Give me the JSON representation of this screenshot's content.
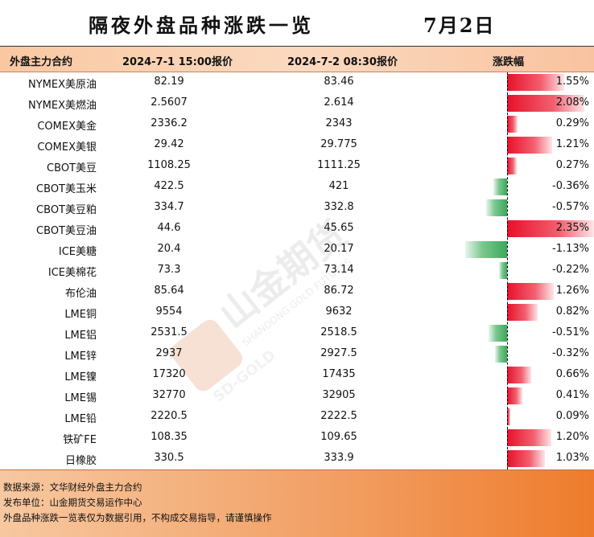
{
  "title": "隔夜外盘品种涨跌一览",
  "date": "7月2日",
  "header": {
    "name": "外盘主力合约",
    "prev": "2024-7-1 15:00报价",
    "curr": "2024-7-2 08:30报价",
    "chg": "涨跌幅"
  },
  "rows": [
    {
      "name": "NYMEX美原油",
      "prev": "82.19",
      "curr": "83.46",
      "pct": "1.55%",
      "value": 1.55
    },
    {
      "name": "NYMEX美燃油",
      "prev": "2.5607",
      "curr": "2.614",
      "pct": "2.08%",
      "value": 2.08
    },
    {
      "name": "COMEX美金",
      "prev": "2336.2",
      "curr": "2343",
      "pct": "0.29%",
      "value": 0.29
    },
    {
      "name": "COMEX美银",
      "prev": "29.42",
      "curr": "29.775",
      "pct": "1.21%",
      "value": 1.21
    },
    {
      "name": "CBOT美豆",
      "prev": "1108.25",
      "curr": "1111.25",
      "pct": "0.27%",
      "value": 0.27
    },
    {
      "name": "CBOT美玉米",
      "prev": "422.5",
      "curr": "421",
      "pct": "-0.36%",
      "value": -0.36
    },
    {
      "name": "CBOT美豆粕",
      "prev": "334.7",
      "curr": "332.8",
      "pct": "-0.57%",
      "value": -0.57
    },
    {
      "name": "CBOT美豆油",
      "prev": "44.6",
      "curr": "45.65",
      "pct": "2.35%",
      "value": 2.35
    },
    {
      "name": "ICE美糖",
      "prev": "20.4",
      "curr": "20.17",
      "pct": "-1.13%",
      "value": -1.13
    },
    {
      "name": "ICE美棉花",
      "prev": "73.3",
      "curr": "73.14",
      "pct": "-0.22%",
      "value": -0.22
    },
    {
      "name": "布伦油",
      "prev": "85.64",
      "curr": "86.72",
      "pct": "1.26%",
      "value": 1.26
    },
    {
      "name": "LME铜",
      "prev": "9554",
      "curr": "9632",
      "pct": "0.82%",
      "value": 0.82
    },
    {
      "name": "LME铝",
      "prev": "2531.5",
      "curr": "2518.5",
      "pct": "-0.51%",
      "value": -0.51
    },
    {
      "name": "LME锌",
      "prev": "2937",
      "curr": "2927.5",
      "pct": "-0.32%",
      "value": -0.32
    },
    {
      "name": "LME镍",
      "prev": "17320",
      "curr": "17435",
      "pct": "0.66%",
      "value": 0.66
    },
    {
      "name": "LME锡",
      "prev": "32770",
      "curr": "32905",
      "pct": "0.41%",
      "value": 0.41
    },
    {
      "name": "LME铅",
      "prev": "2220.5",
      "curr": "2222.5",
      "pct": "0.09%",
      "value": 0.09
    },
    {
      "name": "铁矿FE",
      "prev": "108.35",
      "curr": "109.65",
      "pct": "1.20%",
      "value": 1.2
    },
    {
      "name": "日橡胶",
      "prev": "330.5",
      "curr": "333.9",
      "pct": "1.03%",
      "value": 1.03
    }
  ],
  "footer": {
    "source": "数据来源：文华财经外盘主力合约",
    "publisher": "发布单位：山金期货交易运作中心",
    "disclaimer": "外盘品种涨跌一览表仅为数据引用，不构成交易指导，请谨慎操作"
  },
  "watermark": {
    "brand_cn": "山金期货",
    "brand_en": "SHANDONG GOLD FUTURES",
    "logo_text": "SD-GOLD"
  },
  "colors": {
    "up": "#e8102a",
    "down": "#3aa85a",
    "header_bg": "#fbd9bf",
    "footer_bg": "#ee7c2c"
  }
}
